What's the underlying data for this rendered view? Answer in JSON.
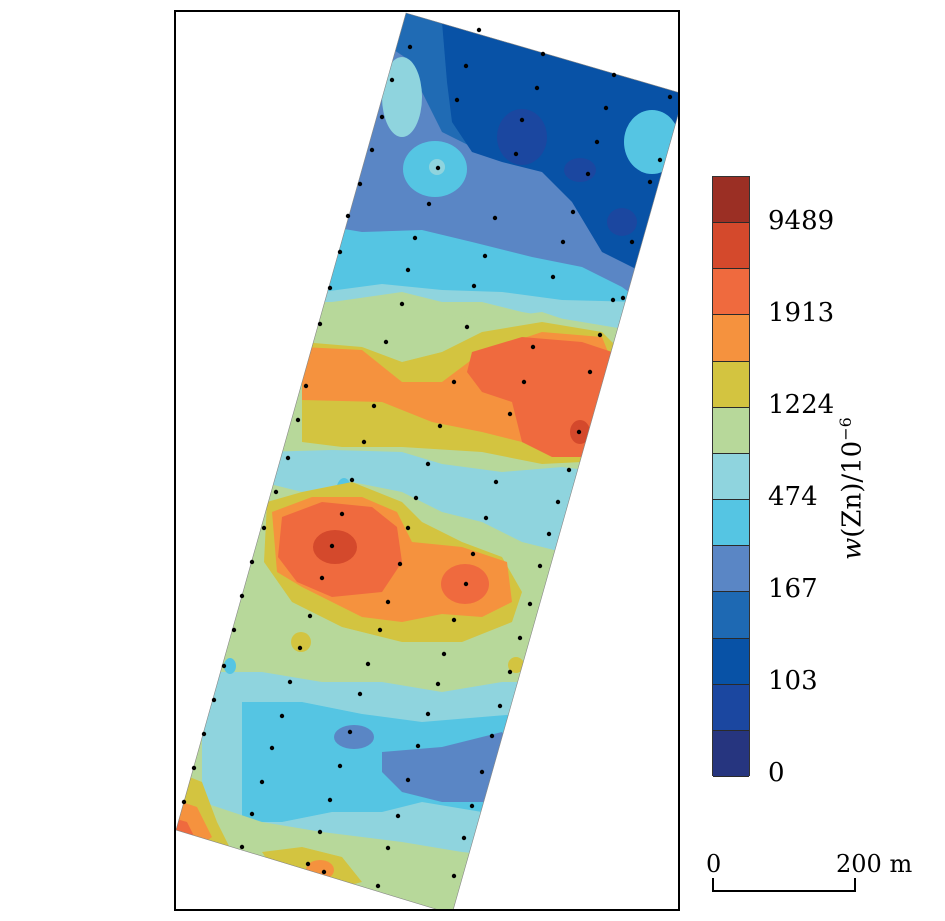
{
  "legend": {
    "title_var": "w",
    "title_text": "(Zn)/10",
    "title_exp": "−6",
    "classes": [
      {
        "color": "#9b2f24"
      },
      {
        "color": "#d4492c"
      },
      {
        "color": "#ef6a3e"
      },
      {
        "color": "#f5923e"
      },
      {
        "color": "#d3c440"
      },
      {
        "color": "#b7d89a"
      },
      {
        "color": "#8fd4de"
      },
      {
        "color": "#55c5e3"
      },
      {
        "color": "#5a86c5"
      },
      {
        "color": "#1e69b3"
      },
      {
        "color": "#0852a6"
      },
      {
        "color": "#1b47a0"
      },
      {
        "color": "#26357f"
      }
    ],
    "labels": [
      "9489",
      "1913",
      "1224",
      "474",
      "167",
      "103",
      "0"
    ]
  },
  "scale": {
    "start": "0",
    "end": "200 m"
  }
}
